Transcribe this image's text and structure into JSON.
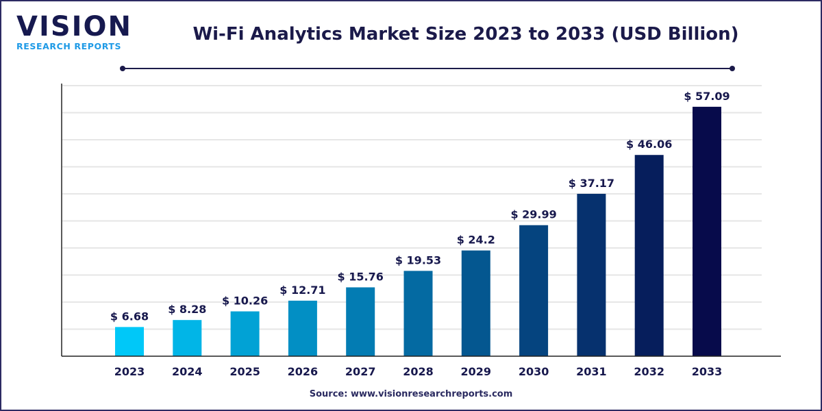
{
  "logo": {
    "main": "VISION",
    "sub": "RESEARCH REPORTS"
  },
  "title": "Wi-Fi Analytics Market Size 2023 to 2033 (USD Billion)",
  "source": "Source: www.visionresearchreports.com",
  "colors": {
    "start": "#00c8f8",
    "end": "#070b4b",
    "text": "#17184d",
    "grid": "#e6e6e6"
  },
  "chart_data": {
    "type": "bar",
    "title": "Wi-Fi Analytics Market Size 2023 to 2033 (USD Billion)",
    "categories": [
      "2023",
      "2024",
      "2025",
      "2026",
      "2027",
      "2028",
      "2029",
      "2030",
      "2031",
      "2032",
      "2033"
    ],
    "values": [
      6.68,
      8.28,
      10.26,
      12.71,
      15.76,
      19.53,
      24.2,
      29.99,
      37.17,
      46.06,
      57.09
    ],
    "data_labels": [
      "$ 6.68",
      "$ 8.28",
      "$ 10.26",
      "$ 12.71",
      "$ 15.76",
      "$ 19.53",
      "$ 24.2",
      "$ 29.99",
      "$ 37.17",
      "$ 46.06",
      "$ 57.09"
    ],
    "xlabel": "",
    "ylabel": "",
    "ylim": [
      0,
      62.4
    ],
    "grid": true,
    "legend": "none"
  }
}
